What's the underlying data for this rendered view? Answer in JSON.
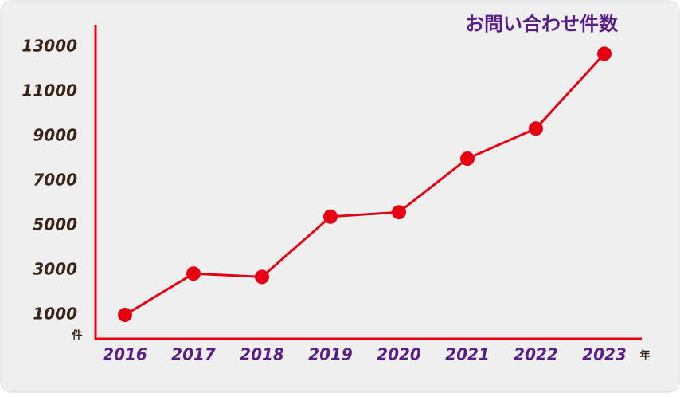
{
  "chart_data": {
    "type": "line",
    "title": "お問い合わせ件数",
    "x_label": "年",
    "y_label": "件",
    "categories": [
      "2016",
      "2017",
      "2018",
      "2019",
      "2020",
      "2021",
      "2022",
      "2023"
    ],
    "series": [
      {
        "name": "お問い合わせ件数",
        "color": "#e60012",
        "values": [
          1000,
          2850,
          2700,
          5400,
          5600,
          8000,
          9350,
          12700
        ]
      }
    ],
    "ylim": [
      0,
      14000
    ],
    "yticks": [
      1000,
      3000,
      5000,
      7000,
      9000,
      11000,
      13000
    ],
    "grid": false
  }
}
